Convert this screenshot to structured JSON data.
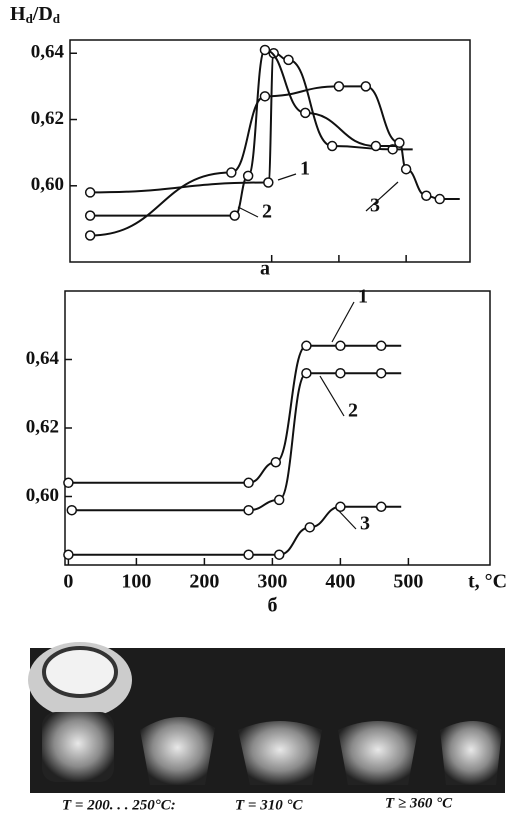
{
  "chart_data": [
    {
      "type": "line",
      "label": "а",
      "y_label_parts": [
        "H",
        "d",
        "/D",
        "d"
      ],
      "xlim": [
        0,
        595
      ],
      "ylim": [
        0.577,
        0.644
      ],
      "xticks": [
        300,
        400,
        500
      ],
      "xtick_labels": false,
      "yticks": [
        {
          "value": 0.6,
          "label": "0,60"
        },
        {
          "value": 0.62,
          "label": "0,62"
        },
        {
          "value": 0.64,
          "label": "0,64"
        }
      ],
      "series": [
        {
          "name": "1",
          "color": "#111111",
          "x": [
            30,
            295,
            303,
            325,
            390,
            480
          ],
          "values": [
            0.598,
            0.601,
            0.64,
            0.638,
            0.612,
            0.611
          ]
        },
        {
          "name": "2",
          "color": "#111111",
          "x": [
            30,
            245,
            265,
            290,
            350,
            455
          ],
          "values": [
            0.591,
            0.591,
            0.603,
            0.641,
            0.622,
            0.612
          ]
        },
        {
          "name": "3",
          "color": "#111111",
          "x": [
            30,
            240,
            290,
            400,
            440,
            490,
            500,
            530,
            550
          ],
          "values": [
            0.585,
            0.604,
            0.627,
            0.63,
            0.63,
            0.613,
            0.605,
            0.597,
            0.596
          ]
        }
      ]
    },
    {
      "type": "line",
      "label": "б",
      "x_label": "t, °C",
      "xlim": [
        -5,
        620
      ],
      "ylim": [
        0.58,
        0.66
      ],
      "xticks": [
        0,
        100,
        200,
        300,
        400,
        500
      ],
      "xtick_labels": true,
      "yticks": [
        {
          "value": 0.6,
          "label": "0,60"
        },
        {
          "value": 0.62,
          "label": "0,62"
        },
        {
          "value": 0.64,
          "label": "0,64"
        }
      ],
      "series": [
        {
          "name": "1",
          "color": "#111111",
          "x": [
            0,
            265,
            305,
            350,
            400,
            460
          ],
          "values": [
            0.604,
            0.604,
            0.61,
            0.644,
            0.644,
            0.644
          ]
        },
        {
          "name": "2",
          "color": "#111111",
          "x": [
            5,
            265,
            310,
            350,
            400,
            460
          ],
          "values": [
            0.596,
            0.596,
            0.599,
            0.636,
            0.636,
            0.636
          ]
        },
        {
          "name": "3",
          "color": "#111111",
          "x": [
            0,
            265,
            310,
            355,
            400,
            460
          ],
          "values": [
            0.583,
            0.583,
            0.583,
            0.591,
            0.597,
            0.597
          ]
        }
      ]
    }
  ],
  "photo": {
    "captions": [
      "T = 200. . . 250°C:",
      "T = 310 °C",
      "T ≥ 360 °C"
    ]
  }
}
